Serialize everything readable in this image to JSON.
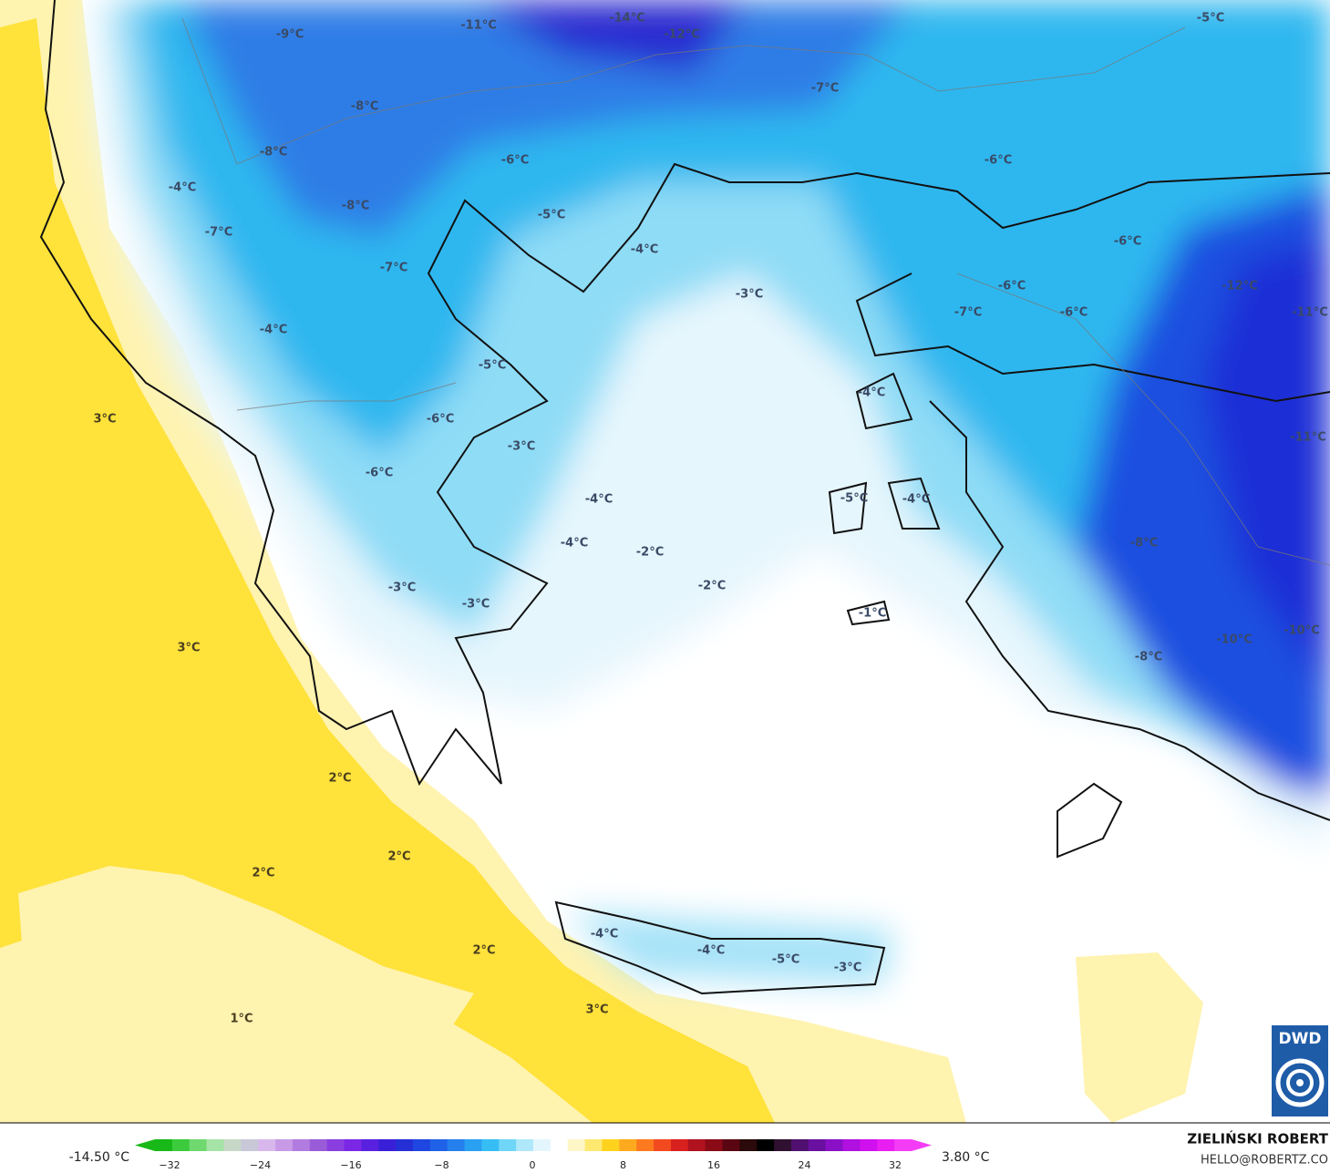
{
  "map": {
    "labels": [
      "-9°C",
      "-11°C",
      "-14°C",
      "-12°C",
      "-5°C",
      "-7°C",
      "-8°C",
      "-8°C",
      "-6°C",
      "-6°C",
      "-4°C",
      "-8°C",
      "-5°C",
      "-7°C",
      "-6°C",
      "-4°C",
      "-7°C",
      "-3°C",
      "-6°C",
      "-12°C",
      "-7°C",
      "-6°C",
      "-11°C",
      "-4°C",
      "-5°C",
      "-4°C",
      "-6°C",
      "-3°C",
      "3°C",
      "-11°C",
      "-6°C",
      "-4°C",
      "-5°C",
      "-4°C",
      "-8°C",
      "-4°C",
      "-2°C",
      "-3°C",
      "-2°C",
      "-3°C",
      "-1°C",
      "-10°C",
      "-10°C",
      "3°C",
      "-8°C",
      "2°C",
      "2°C",
      "2°C",
      "2°C",
      "-4°C",
      "-4°C",
      "-5°C",
      "-3°C",
      "3°C",
      "1°C"
    ]
  },
  "colorbar": {
    "min_label": "-14.50 °C",
    "max_label": "3.80 °C",
    "ticks": [
      "−32",
      "−24",
      "−16",
      "−8",
      "0",
      "8",
      "16",
      "24",
      "32"
    ]
  },
  "footer": {
    "author": "ZIELIŃSKI ROBERT",
    "email": "HELLO@ROBERTZ.CO",
    "logo": "DWD"
  }
}
